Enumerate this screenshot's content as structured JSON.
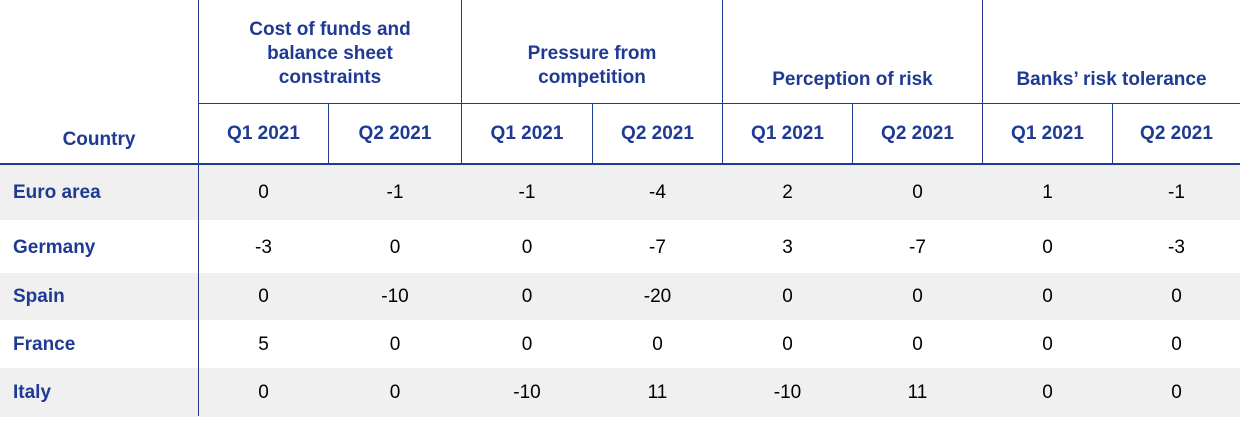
{
  "table": {
    "country_header": "Country",
    "groups": [
      {
        "label": "Cost of funds and balance sheet constraints"
      },
      {
        "label": "Pressure from competition"
      },
      {
        "label": "Perception of risk"
      },
      {
        "label": "Banks’ risk tolerance"
      }
    ],
    "subheaders": [
      "Q1 2021",
      "Q2 2021",
      "Q1 2021",
      "Q2 2021",
      "Q1 2021",
      "Q2 2021",
      "Q1 2021",
      "Q2 2021"
    ],
    "rows": [
      {
        "country": "Euro area",
        "values": [
          "0",
          "-1",
          "-1",
          "-4",
          "2",
          "0",
          "1",
          "-1"
        ]
      },
      {
        "country": "Germany",
        "values": [
          "-3",
          "0",
          "0",
          "-7",
          "3",
          "-7",
          "0",
          "-3"
        ]
      },
      {
        "country": "Spain",
        "values": [
          "0",
          "-10",
          "0",
          "-20",
          "0",
          "0",
          "0",
          "0"
        ]
      },
      {
        "country": "France",
        "values": [
          "5",
          "0",
          "0",
          "0",
          "0",
          "0",
          "0",
          "0"
        ]
      },
      {
        "country": "Italy",
        "values": [
          "0",
          "0",
          "-10",
          "11",
          "-10",
          "11",
          "0",
          "0"
        ]
      }
    ],
    "colors": {
      "header_text": "#1f3a93",
      "rule": "#1f3a93",
      "band": "#f0f0f0",
      "value_text": "#000000"
    }
  }
}
